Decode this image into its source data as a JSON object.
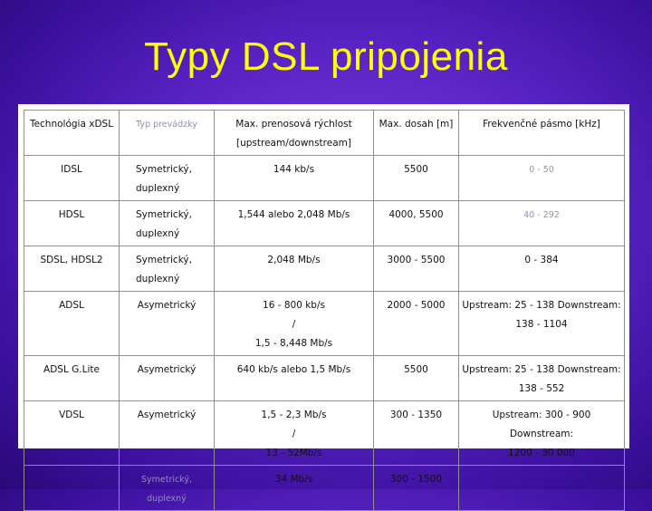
{
  "slide": {
    "title": "Typy DSL pripojenia"
  },
  "table": {
    "headers": [
      {
        "text": "Technológia xDSL",
        "muted": false
      },
      {
        "text": "Typ prevádzky",
        "muted": true
      },
      {
        "text": "Max. prenosová rýchlost",
        "sub": "[upstream/downstream]",
        "muted": false
      },
      {
        "text": "Max. dosah [m]",
        "muted": false
      },
      {
        "text": "Frekvenčné pásmo [kHz]",
        "muted": false
      }
    ],
    "rows": [
      {
        "tech": "IDSL",
        "type": [
          "Symetrický,",
          "duplexný"
        ],
        "rate": [
          "144 kb/s"
        ],
        "reach": "5500",
        "freq": [
          "0 - 50"
        ],
        "freq_muted": true
      },
      {
        "tech": "HDSL",
        "type": [
          "Symetrický,",
          "duplexný"
        ],
        "rate": [
          "1,544 alebo 2,048 Mb/s"
        ],
        "reach": "4000, 5500",
        "freq": [
          "40 - 292"
        ],
        "freq_muted": true
      },
      {
        "tech": "SDSL, HDSL2",
        "type": [
          "Symetrický,",
          "duplexný"
        ],
        "rate": [
          "2,048 Mb/s"
        ],
        "reach": "3000 - 5500",
        "freq": [
          "0 - 384"
        ],
        "freq_muted": false
      },
      {
        "tech": "ADSL",
        "type": [
          "Asymetrický"
        ],
        "rate": [
          "16 - 800 kb/s",
          "/",
          "1,5 - 8,448 Mb/s"
        ],
        "reach": "2000 - 5000",
        "freq": [
          "Upstream: 25 - 138 Downstream:",
          "138 - 1104"
        ],
        "freq_muted": false
      },
      {
        "tech": "ADSL G.Lite",
        "type": [
          "Asymetrický"
        ],
        "rate": [
          "640 kb/s alebo 1,5 Mb/s"
        ],
        "reach": "5500",
        "freq": [
          "Upstream: 25 - 138 Downstream:",
          "138 - 552"
        ],
        "freq_muted": false
      },
      {
        "tech": "VDSL",
        "type": [
          "Asymetrický"
        ],
        "rate": [
          "1,5 - 2,3 Mb/s",
          "/",
          "13 - 52Mb/s"
        ],
        "reach": "300 - 1350",
        "freq": [
          "Upstream: 300 - 900 Downstream:",
          "1200 - 30 000"
        ],
        "freq_muted": false
      },
      {
        "tech": "",
        "type": [
          "Symetrický, duplexný"
        ],
        "type_muted": true,
        "rate": [
          "34 Mb/s"
        ],
        "reach": "300 - 1500",
        "freq": [
          ""
        ],
        "freq_muted": false
      }
    ]
  }
}
